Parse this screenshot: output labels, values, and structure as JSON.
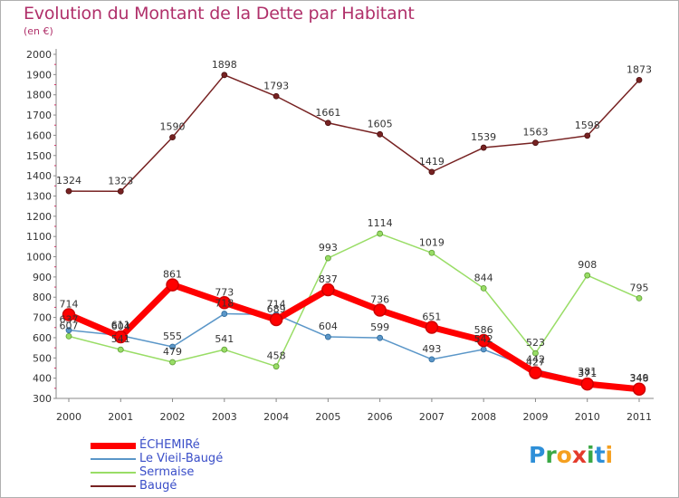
{
  "chart_data": {
    "type": "line",
    "title": "Evolution du Montant de la Dette par Habitant",
    "subtitle": "(en €)",
    "x": [
      "2000",
      "2001",
      "2002",
      "2003",
      "2004",
      "2005",
      "2006",
      "2007",
      "2008",
      "2009",
      "2010",
      "2011"
    ],
    "ylim": [
      300,
      2000
    ],
    "yticks": [
      300,
      400,
      500,
      600,
      700,
      800,
      900,
      1000,
      1100,
      1200,
      1300,
      1400,
      1500,
      1600,
      1700,
      1800,
      1900,
      2000
    ],
    "grid": false,
    "legend_position": "bottom-left",
    "series": [
      {
        "name": "ÉCHEMIRé",
        "color": "#ff0000",
        "values": [
          714,
          604,
          861,
          773,
          689,
          837,
          736,
          651,
          586,
          427,
          371,
          346
        ]
      },
      {
        "name": "Le Vieil-Baugé",
        "color": "#5a96c8",
        "values": [
          637,
          611,
          555,
          718,
          714,
          604,
          599,
          493,
          542,
          442,
          381,
          349
        ]
      },
      {
        "name": "Sermaise",
        "color": "#99dd66",
        "values": [
          607,
          541,
          479,
          541,
          458,
          993,
          1114,
          1019,
          844,
          523,
          908,
          795
        ]
      },
      {
        "name": "Baugé",
        "color": "#772222",
        "values": [
          1324,
          1323,
          1590,
          1898,
          1793,
          1661,
          1605,
          1419,
          1539,
          1563,
          1598,
          1873
        ]
      }
    ]
  },
  "logo": {
    "text": "Proxiti",
    "letters": [
      {
        "ch": "P",
        "color": "#2e8fd8"
      },
      {
        "ch": "r",
        "color": "#3aa845"
      },
      {
        "ch": "o",
        "color": "#f5a020"
      },
      {
        "ch": "x",
        "color": "#e43b2c"
      },
      {
        "ch": "i",
        "color": "#3aa845"
      },
      {
        "ch": "t",
        "color": "#2e8fd8"
      },
      {
        "ch": "i",
        "color": "#f5a020"
      }
    ]
  }
}
